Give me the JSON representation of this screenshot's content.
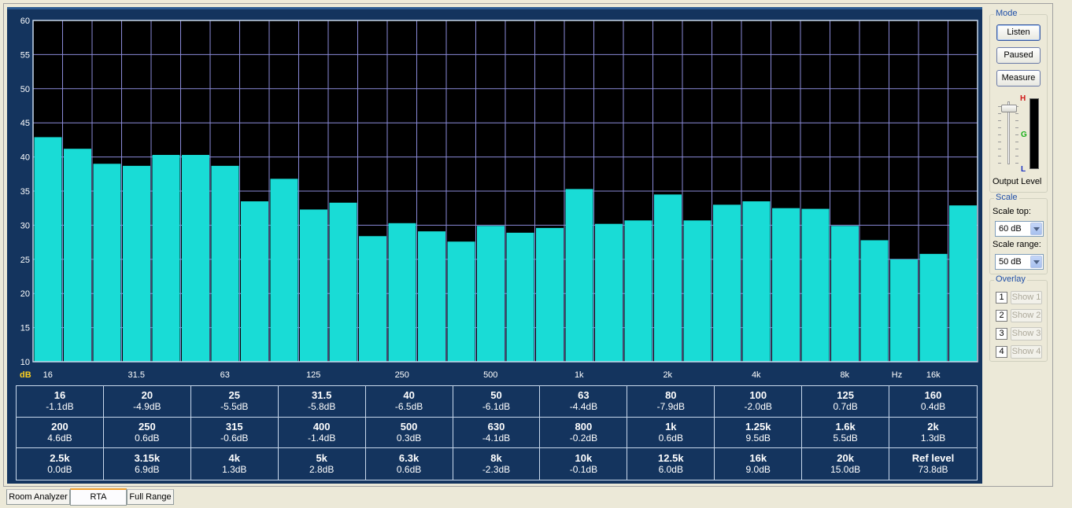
{
  "chart_data": {
    "type": "bar",
    "ylabel": "dB",
    "xlabel": "Hz",
    "ylim": [
      10,
      60
    ],
    "yticks": [
      10,
      15,
      20,
      25,
      30,
      35,
      40,
      45,
      50,
      55,
      60
    ],
    "xticks": [
      {
        "band": 0,
        "label": "16"
      },
      {
        "band": 3,
        "label": "31.5"
      },
      {
        "band": 6,
        "label": "63"
      },
      {
        "band": 9,
        "label": "125"
      },
      {
        "band": 12,
        "label": "250"
      },
      {
        "band": 15,
        "label": "500"
      },
      {
        "band": 18,
        "label": "1k"
      },
      {
        "band": 21,
        "label": "2k"
      },
      {
        "band": 24,
        "label": "4k"
      },
      {
        "band": 27,
        "label": "8k"
      },
      {
        "band": 30,
        "label": "16k"
      }
    ],
    "categories": [
      "16",
      "20",
      "25",
      "31.5",
      "40",
      "50",
      "63",
      "80",
      "100",
      "125",
      "160",
      "200",
      "250",
      "315",
      "400",
      "500",
      "630",
      "800",
      "1k",
      "1.25k",
      "1.6k",
      "2k",
      "2.5k",
      "3.15k",
      "4k",
      "5k",
      "6.3k",
      "8k",
      "10k",
      "12.5k",
      "16k",
      "20k"
    ],
    "values": [
      42.9,
      41.2,
      39.0,
      38.7,
      40.3,
      40.3,
      38.7,
      33.5,
      36.8,
      32.3,
      33.3,
      28.4,
      30.3,
      29.1,
      27.6,
      29.9,
      28.9,
      29.6,
      35.3,
      30.2,
      30.7,
      34.5,
      30.7,
      33.0,
      33.5,
      32.5,
      32.4,
      29.9,
      27.8,
      25.0,
      25.8,
      32.9
    ],
    "grid": true,
    "colors": {
      "bar": "#19dcd6",
      "plot_bg": "#000000",
      "grid": "#8a8ad8",
      "axis_text": "#ffffff"
    }
  },
  "table": [
    {
      "freq": "16",
      "value": "-1.1dB"
    },
    {
      "freq": "20",
      "value": "-4.9dB"
    },
    {
      "freq": "25",
      "value": "-5.5dB"
    },
    {
      "freq": "31.5",
      "value": "-5.8dB"
    },
    {
      "freq": "40",
      "value": "-6.5dB"
    },
    {
      "freq": "50",
      "value": "-6.1dB"
    },
    {
      "freq": "63",
      "value": "-4.4dB"
    },
    {
      "freq": "80",
      "value": "-7.9dB"
    },
    {
      "freq": "100",
      "value": "-2.0dB"
    },
    {
      "freq": "125",
      "value": "0.7dB"
    },
    {
      "freq": "160",
      "value": "0.4dB"
    },
    {
      "freq": "200",
      "value": "4.6dB"
    },
    {
      "freq": "250",
      "value": "0.6dB"
    },
    {
      "freq": "315",
      "value": "-0.6dB"
    },
    {
      "freq": "400",
      "value": "-1.4dB"
    },
    {
      "freq": "500",
      "value": "0.3dB"
    },
    {
      "freq": "630",
      "value": "-4.1dB"
    },
    {
      "freq": "800",
      "value": "-0.2dB"
    },
    {
      "freq": "1k",
      "value": "0.6dB"
    },
    {
      "freq": "1.25k",
      "value": "9.5dB"
    },
    {
      "freq": "1.6k",
      "value": "5.5dB"
    },
    {
      "freq": "2k",
      "value": "1.3dB"
    },
    {
      "freq": "2.5k",
      "value": "0.0dB"
    },
    {
      "freq": "3.15k",
      "value": "6.9dB"
    },
    {
      "freq": "4k",
      "value": "1.3dB"
    },
    {
      "freq": "5k",
      "value": "2.8dB"
    },
    {
      "freq": "6.3k",
      "value": "0.6dB"
    },
    {
      "freq": "8k",
      "value": "-2.3dB"
    },
    {
      "freq": "10k",
      "value": "-0.1dB"
    },
    {
      "freq": "12.5k",
      "value": "6.0dB"
    },
    {
      "freq": "16k",
      "value": "9.0dB"
    },
    {
      "freq": "20k",
      "value": "15.0dB"
    },
    {
      "freq": "Ref level",
      "value": "73.8dB"
    }
  ],
  "mode": {
    "title": "Mode",
    "listen": "Listen",
    "paused": "Paused",
    "measure": "Measure",
    "output_level_label": "Output Level",
    "meter_labels": {
      "high": "H",
      "good": "G",
      "low": "L"
    },
    "output_level_fraction": 0.95
  },
  "scale": {
    "title": "Scale",
    "top_label": "Scale top:",
    "top_value": "60 dB",
    "range_label": "Scale range:",
    "range_value": "50 dB"
  },
  "overlay": {
    "title": "Overlay",
    "items": [
      {
        "num": "1",
        "label": "Show 1"
      },
      {
        "num": "2",
        "label": "Show 2"
      },
      {
        "num": "3",
        "label": "Show 3"
      },
      {
        "num": "4",
        "label": "Show 4"
      }
    ]
  },
  "tabs": [
    "Room Analyzer",
    "RTA",
    "Full Range"
  ]
}
